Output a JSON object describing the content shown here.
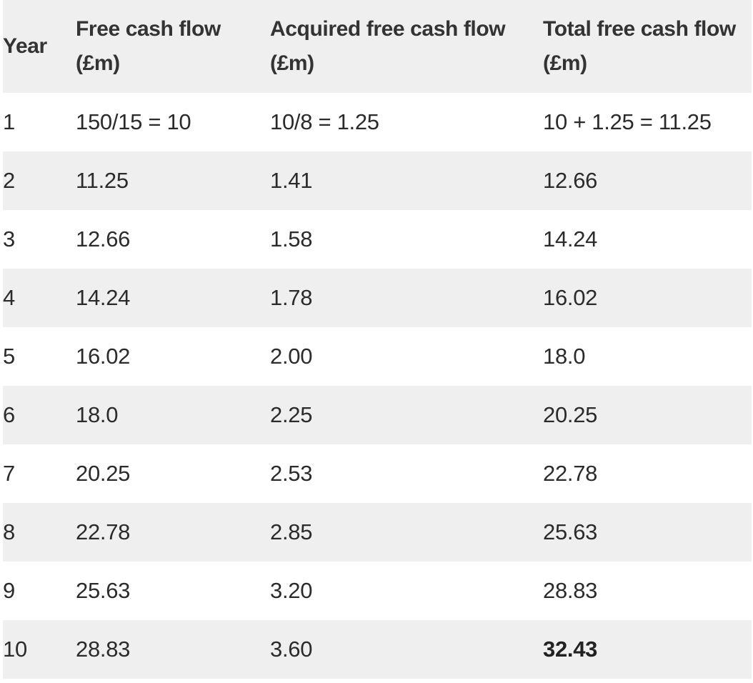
{
  "table": {
    "headers": [
      "Year",
      "Free cash flow (£m)",
      "Acquired free cash flow (£m)",
      "Total free cash flow (£m)"
    ],
    "rows": [
      [
        "1",
        "150/15 = 10",
        "10/8 = 1.25",
        "10 + 1.25 = 11.25"
      ],
      [
        "2",
        "11.25",
        "1.41",
        "12.66"
      ],
      [
        "3",
        "12.66",
        "1.58",
        "14.24"
      ],
      [
        "4",
        "14.24",
        "1.78",
        "16.02"
      ],
      [
        "5",
        "16.02",
        "2.00",
        "18.0"
      ],
      [
        "6",
        "18.0",
        "2.25",
        "20.25"
      ],
      [
        "7",
        "20.25",
        "2.53",
        "22.78"
      ],
      [
        "8",
        "22.78",
        "2.85",
        "25.63"
      ],
      [
        "9",
        "25.63",
        "3.20",
        "28.83"
      ],
      [
        "10",
        "28.83",
        "3.60",
        "32.43"
      ]
    ],
    "emphasis_cell": "32.43",
    "colors": {
      "shade": "#efefef",
      "text": "#2b2b2b"
    }
  }
}
